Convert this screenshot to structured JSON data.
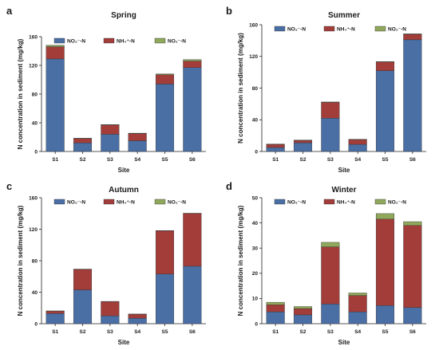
{
  "series_colors": {
    "nitrate": "#4a6fa5",
    "ammonium": "#a33d3a",
    "nitrite": "#8fa85b"
  },
  "chart_data": [
    {
      "type": "bar",
      "stacked": true,
      "panel": "a",
      "title": "Spring",
      "xlabel": "Site",
      "ylabel": "N concentration in sediment (mg/kg)",
      "ylim": [
        0,
        160
      ],
      "yticks": [
        "0",
        "40",
        "80",
        "120",
        "160"
      ],
      "legend_position": "top-right",
      "categories": [
        "S1",
        "S2",
        "S3",
        "S4",
        "S5",
        "S6"
      ],
      "series": [
        {
          "name": "NO₃⁻-N",
          "values": [
            129,
            12,
            24,
            15,
            94,
            117
          ]
        },
        {
          "name": "NH₄⁺-N",
          "values": [
            17,
            6,
            13,
            10,
            13,
            9
          ]
        },
        {
          "name": "NO₂⁻-N",
          "values": [
            2,
            0.5,
            0.5,
            0.5,
            1,
            2
          ]
        }
      ]
    },
    {
      "type": "bar",
      "stacked": true,
      "panel": "b",
      "title": "Summer",
      "xlabel": "Site",
      "ylabel": "N concentration in sediment (mg/kg)",
      "ylim": [
        0,
        160
      ],
      "yticks": [
        "0",
        "40",
        "80",
        "120",
        "160"
      ],
      "legend_position": "top-right",
      "categories": [
        "S1",
        "S2",
        "S3",
        "S4",
        "S5",
        "S6"
      ],
      "series": [
        {
          "name": "NO₃⁻-N",
          "values": [
            5,
            11,
            42,
            9,
            102,
            141
          ]
        },
        {
          "name": "NH₄⁺-N",
          "values": [
            4,
            3,
            20,
            6,
            11,
            7
          ]
        },
        {
          "name": "NO₂⁻-N",
          "values": [
            0.3,
            0.3,
            0.5,
            0.3,
            0.5,
            0.5
          ]
        }
      ]
    },
    {
      "type": "bar",
      "stacked": true,
      "panel": "c",
      "title": "Autumn",
      "xlabel": "Site",
      "ylabel": "N concentration in sediment (mg/kg)",
      "ylim": [
        0,
        160
      ],
      "yticks": [
        "0",
        "40",
        "80",
        "120",
        "160"
      ],
      "legend_position": "top-right",
      "categories": [
        "S1",
        "S2",
        "S3",
        "S4",
        "S5",
        "S6"
      ],
      "series": [
        {
          "name": "NO₃⁻-N",
          "values": [
            13,
            43,
            10,
            7,
            63,
            73
          ]
        },
        {
          "name": "NH₄⁺-N",
          "values": [
            3,
            26,
            18,
            5,
            55,
            67
          ]
        },
        {
          "name": "NO₂⁻-N",
          "values": [
            0.3,
            0.3,
            0.3,
            0.3,
            0.3,
            0.3
          ]
        }
      ]
    },
    {
      "type": "bar",
      "stacked": true,
      "panel": "d",
      "title": "Winter",
      "xlabel": "Site",
      "ylabel": "N concentration in sediment (mg/kg)",
      "ylim": [
        0,
        50
      ],
      "yticks": [
        "0",
        "10",
        "20",
        "30",
        "40",
        "50"
      ],
      "legend_position": "top-right",
      "categories": [
        "S1",
        "S2",
        "S3",
        "S4",
        "S5",
        "S6"
      ],
      "series": [
        {
          "name": "NO₃⁻-N",
          "values": [
            4.7,
            3.5,
            7.8,
            4.7,
            7.2,
            6.4
          ]
        },
        {
          "name": "NH₄⁺-N",
          "values": [
            2.8,
            2.5,
            22.7,
            6.5,
            34.3,
            32.6
          ]
        },
        {
          "name": "NO₂⁻-N",
          "values": [
            1.0,
            0.8,
            1.8,
            1.0,
            2.2,
            1.5
          ]
        }
      ]
    }
  ]
}
